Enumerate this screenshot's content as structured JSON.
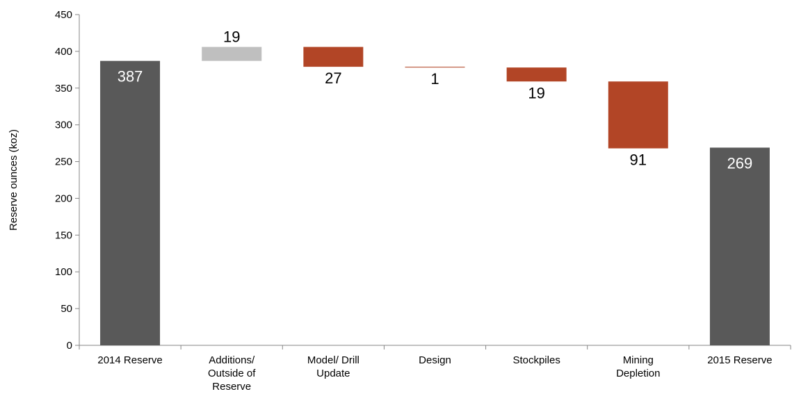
{
  "chart_data": {
    "type": "bar",
    "subtype": "waterfall",
    "ylabel": "Reserve ounces  (koz)",
    "xlabel": "",
    "title": "",
    "ylim": [
      0,
      450
    ],
    "yticks": [
      0,
      50,
      100,
      150,
      200,
      250,
      300,
      350,
      400,
      450
    ],
    "grid": false,
    "legend": "none",
    "colors": {
      "total": "#595959",
      "increase": "#bfbfbf",
      "decrease": "#b24526"
    },
    "categories": [
      [
        "2014 Reserve"
      ],
      [
        "Additions/",
        "Outside of",
        "Reserve"
      ],
      [
        "Model/ Drill",
        "Update"
      ],
      [
        "Design"
      ],
      [
        "Stockpiles"
      ],
      [
        "Mining",
        "Depletion"
      ],
      [
        "2015 Reserve"
      ]
    ],
    "bars": [
      {
        "kind": "total",
        "start": 0,
        "end": 387,
        "label": "387"
      },
      {
        "kind": "increase",
        "start": 387,
        "end": 406,
        "label": "19"
      },
      {
        "kind": "decrease",
        "start": 406,
        "end": 379,
        "label": "27"
      },
      {
        "kind": "decrease",
        "start": 379,
        "end": 378,
        "label": "1"
      },
      {
        "kind": "decrease",
        "start": 378,
        "end": 359,
        "label": "19"
      },
      {
        "kind": "decrease",
        "start": 359,
        "end": 268,
        "label": "91"
      },
      {
        "kind": "total",
        "start": 0,
        "end": 269,
        "label": "269"
      }
    ]
  }
}
